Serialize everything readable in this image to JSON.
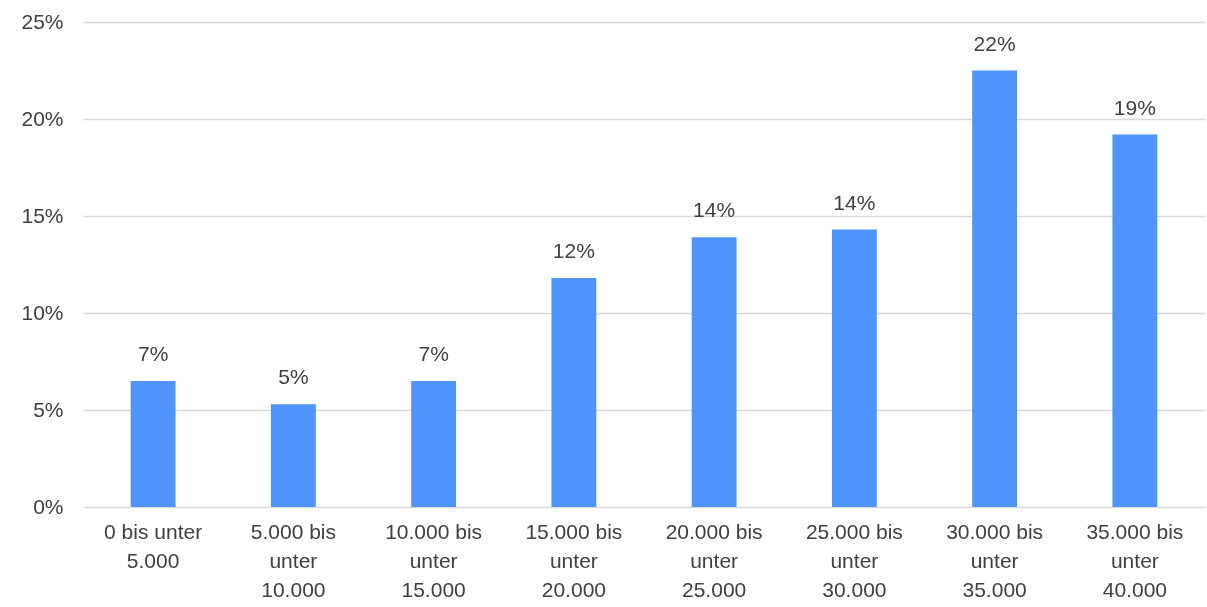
{
  "chart_data": {
    "type": "bar",
    "categories": [
      "0 bis unter 5.000",
      "5.000 bis unter 10.000",
      "10.000 bis unter 15.000",
      "15.000 bis unter 20.000",
      "20.000 bis unter 25.000",
      "25.000 bis unter 30.000",
      "30.000 bis unter 35.000",
      "35.000 bis unter 40.000"
    ],
    "values": [
      6.5,
      5.3,
      6.5,
      11.8,
      13.9,
      14.3,
      22.5,
      19.2
    ],
    "value_labels": [
      "7%",
      "5%",
      "7%",
      "12%",
      "14%",
      "14%",
      "22%",
      "19%"
    ],
    "color": "#4f94fb",
    "ylim": [
      0,
      25
    ],
    "yticks": [
      {
        "value": 0,
        "label": "0%"
      },
      {
        "value": 5,
        "label": "5%"
      },
      {
        "value": 10,
        "label": "10%"
      },
      {
        "value": 15,
        "label": "15%"
      },
      {
        "value": 20,
        "label": "20%"
      },
      {
        "value": 25,
        "label": "25%"
      }
    ],
    "grid": "y"
  }
}
